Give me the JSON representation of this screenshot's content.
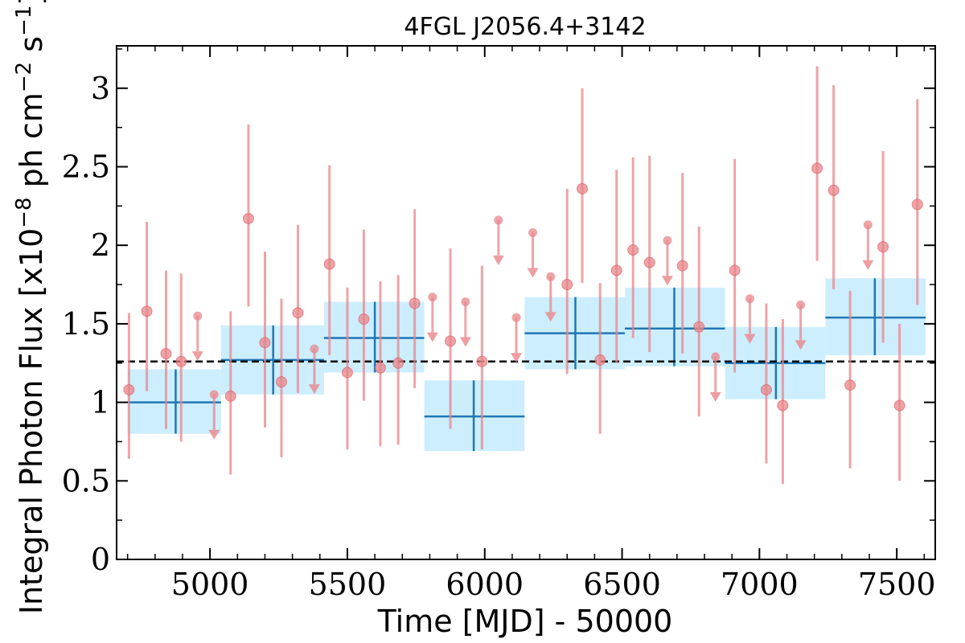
{
  "chart_data": {
    "type": "scatter",
    "title": "4FGL J2056.4+3142",
    "xlabel": "Time [MJD] - 50000",
    "ylabel": "Integral Photon Flux [x10",
    "ylabel_exp1": "−8",
    "ylabel_mid": " ph cm",
    "ylabel_exp2": "−2",
    "ylabel_mid2": " s",
    "ylabel_exp3": "−1",
    "ylabel_end": "]",
    "xlim": [
      4660,
      7640
    ],
    "ylim": [
      0,
      3.27
    ],
    "x_ticks": [
      5000,
      5500,
      6000,
      6500,
      7000,
      7500
    ],
    "y_ticks": [
      0,
      0.5,
      1,
      1.5,
      2,
      2.5,
      3
    ],
    "x_tick_labels": [
      "5000",
      "5500",
      "6000",
      "6500",
      "7000",
      "7500"
    ],
    "y_tick_labels": [
      "0",
      "0.5",
      "1",
      "1.5",
      "2",
      "2.5",
      "3"
    ],
    "mean_flux": 1.26,
    "colors": {
      "short_bin": "#e8868a",
      "long_bin_fill": "#cdeefe",
      "long_bin_line": "#1f77b4",
      "mean_line": "#000000"
    },
    "series": [
      {
        "points": [
          {
            "x": 4705,
            "y": 1.08,
            "lo": 0.64,
            "hi": 1.57
          },
          {
            "x": 4770,
            "y": 1.58,
            "lo": 1.07,
            "hi": 2.15
          },
          {
            "x": 4840,
            "y": 1.31,
            "lo": 0.83,
            "hi": 1.84
          },
          {
            "x": 4895,
            "y": 1.26,
            "lo": 0.75,
            "hi": 1.82
          },
          {
            "x": 5075,
            "y": 1.04,
            "lo": 0.54,
            "hi": 1.58
          },
          {
            "x": 5140,
            "y": 2.17,
            "lo": 1.61,
            "hi": 2.77
          },
          {
            "x": 5200,
            "y": 1.38,
            "lo": 0.84,
            "hi": 1.96
          },
          {
            "x": 5260,
            "y": 1.13,
            "lo": 0.65,
            "hi": 1.66
          },
          {
            "x": 5320,
            "y": 1.57,
            "lo": 1.06,
            "hi": 2.13
          },
          {
            "x": 5435,
            "y": 1.88,
            "lo": 1.3,
            "hi": 2.51
          },
          {
            "x": 5500,
            "y": 1.19,
            "lo": 0.7,
            "hi": 1.73
          },
          {
            "x": 5560,
            "y": 1.53,
            "lo": 1.01,
            "hi": 2.1
          },
          {
            "x": 5620,
            "y": 1.22,
            "lo": 0.72,
            "hi": 1.77
          },
          {
            "x": 5685,
            "y": 1.25,
            "lo": 0.73,
            "hi": 1.81
          },
          {
            "x": 5745,
            "y": 1.63,
            "lo": 1.09,
            "hi": 2.23
          },
          {
            "x": 5875,
            "y": 1.39,
            "lo": 0.83,
            "hi": 1.98
          },
          {
            "x": 5990,
            "y": 1.26,
            "lo": 0.7,
            "hi": 1.87
          },
          {
            "x": 6300,
            "y": 1.75,
            "lo": 1.18,
            "hi": 2.36
          },
          {
            "x": 6355,
            "y": 2.36,
            "lo": 1.76,
            "hi": 3.0
          },
          {
            "x": 6420,
            "y": 1.27,
            "lo": 0.8,
            "hi": 1.76
          },
          {
            "x": 6480,
            "y": 1.84,
            "lo": 1.25,
            "hi": 2.48
          },
          {
            "x": 6540,
            "y": 1.97,
            "lo": 1.41,
            "hi": 2.56
          },
          {
            "x": 6600,
            "y": 1.89,
            "lo": 1.32,
            "hi": 2.57
          },
          {
            "x": 6720,
            "y": 1.87,
            "lo": 1.31,
            "hi": 2.46
          },
          {
            "x": 6780,
            "y": 1.48,
            "lo": 0.91,
            "hi": 2.12
          },
          {
            "x": 6910,
            "y": 1.84,
            "lo": 1.19,
            "hi": 2.55
          },
          {
            "x": 7025,
            "y": 1.08,
            "lo": 0.61,
            "hi": 1.63
          },
          {
            "x": 7085,
            "y": 0.98,
            "lo": 0.48,
            "hi": 1.53
          },
          {
            "x": 7210,
            "y": 2.49,
            "lo": 1.9,
            "hi": 3.14
          },
          {
            "x": 7270,
            "y": 2.35,
            "lo": 1.72,
            "hi": 3.02
          },
          {
            "x": 7330,
            "y": 1.11,
            "lo": 0.58,
            "hi": 1.71
          },
          {
            "x": 7450,
            "y": 1.99,
            "lo": 1.38,
            "hi": 2.6
          },
          {
            "x": 7510,
            "y": 0.98,
            "lo": 0.5,
            "hi": 1.5
          },
          {
            "x": 7575,
            "y": 2.26,
            "lo": 1.62,
            "hi": 2.93
          }
        ],
        "upper_limits": [
          {
            "x": 4955,
            "y": 1.55
          },
          {
            "x": 5015,
            "y": 1.05
          },
          {
            "x": 5380,
            "y": 1.34
          },
          {
            "x": 5810,
            "y": 1.67
          },
          {
            "x": 5930,
            "y": 1.64
          },
          {
            "x": 6115,
            "y": 1.54
          },
          {
            "x": 6050,
            "y": 2.16
          },
          {
            "x": 6175,
            "y": 2.08
          },
          {
            "x": 6240,
            "y": 1.8
          },
          {
            "x": 6665,
            "y": 2.03
          },
          {
            "x": 6840,
            "y": 1.29
          },
          {
            "x": 6965,
            "y": 1.66
          },
          {
            "x": 7150,
            "y": 1.62
          },
          {
            "x": 7395,
            "y": 2.13
          }
        ]
      },
      {
        "bins": [
          {
            "x0": 4700,
            "x1": 5040,
            "xc": 4875,
            "y": 1.0,
            "lo": 0.8,
            "hi": 1.21
          },
          {
            "x0": 5040,
            "x1": 5415,
            "xc": 5230,
            "y": 1.27,
            "lo": 1.05,
            "hi": 1.49
          },
          {
            "x0": 5415,
            "x1": 5780,
            "xc": 5600,
            "y": 1.41,
            "lo": 1.19,
            "hi": 1.64
          },
          {
            "x0": 5780,
            "x1": 6145,
            "xc": 5960,
            "y": 0.91,
            "lo": 0.69,
            "hi": 1.14
          },
          {
            "x0": 6145,
            "x1": 6510,
            "xc": 6330,
            "y": 1.44,
            "lo": 1.21,
            "hi": 1.67
          },
          {
            "x0": 6510,
            "x1": 6875,
            "xc": 6690,
            "y": 1.47,
            "lo": 1.23,
            "hi": 1.73
          },
          {
            "x0": 6875,
            "x1": 7240,
            "xc": 7060,
            "y": 1.25,
            "lo": 1.02,
            "hi": 1.48
          },
          {
            "x0": 7240,
            "x1": 7605,
            "xc": 7420,
            "y": 1.54,
            "lo": 1.3,
            "hi": 1.79
          }
        ]
      }
    ]
  }
}
